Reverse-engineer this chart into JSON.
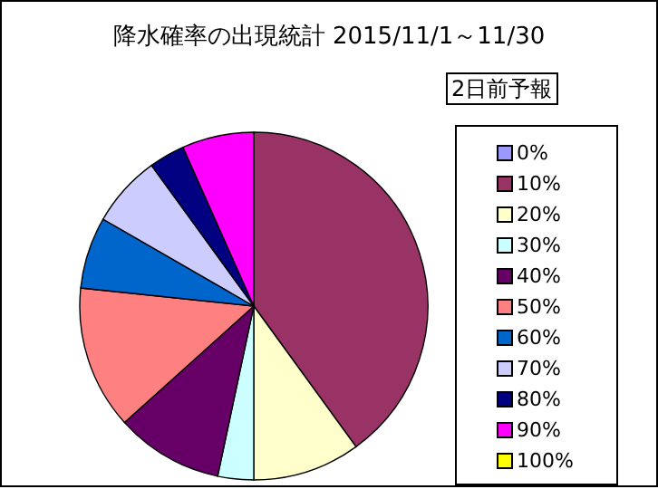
{
  "chart_data": {
    "type": "pie",
    "title": "降水確率の出現統計 2015/11/1～11/30",
    "legend_title": "2日前予報",
    "categories": [
      "0%",
      "10%",
      "20%",
      "30%",
      "40%",
      "50%",
      "60%",
      "70%",
      "80%",
      "90%",
      "100%"
    ],
    "values": [
      0,
      40,
      10,
      3.33,
      10,
      13.33,
      6.67,
      6.67,
      3.33,
      6.67,
      0
    ],
    "colors": [
      "#9999ff",
      "#993366",
      "#ffffcc",
      "#ccffff",
      "#660066",
      "#ff8080",
      "#0066cc",
      "#ccccff",
      "#000080",
      "#ff00ff",
      "#ffff00"
    ],
    "legend": "right"
  }
}
